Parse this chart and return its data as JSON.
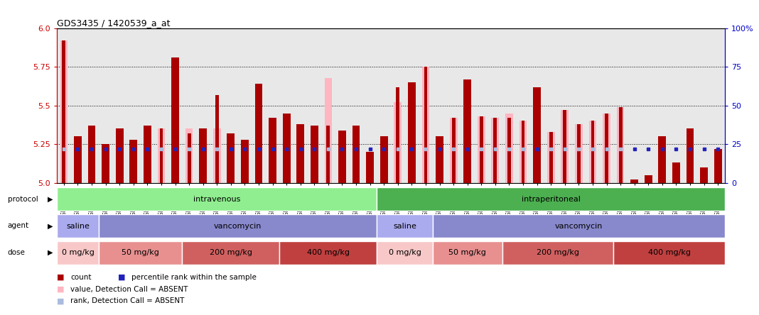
{
  "title": "GDS3435 / 1420539_a_at",
  "samples": [
    "GSM189045",
    "GSM189047",
    "GSM189048",
    "GSM189049",
    "GSM189050",
    "GSM189051",
    "GSM189052",
    "GSM189053",
    "GSM189054",
    "GSM189055",
    "GSM189056",
    "GSM189057",
    "GSM189058",
    "GSM189059",
    "GSM189060",
    "GSM189062",
    "GSM189063",
    "GSM189064",
    "GSM189065",
    "GSM189066",
    "GSM189068",
    "GSM189069",
    "GSM189070",
    "GSM189071",
    "GSM189072",
    "GSM189073",
    "GSM189074",
    "GSM189075",
    "GSM189076",
    "GSM189077",
    "GSM189078",
    "GSM189079",
    "GSM189080",
    "GSM189081",
    "GSM189082",
    "GSM189083",
    "GSM189084",
    "GSM189085",
    "GSM189086",
    "GSM189087",
    "GSM189088",
    "GSM189089",
    "GSM189090",
    "GSM189091",
    "GSM189092",
    "GSM189093",
    "GSM189094",
    "GSM189095"
  ],
  "red_values": [
    5.92,
    5.3,
    5.37,
    5.25,
    5.35,
    5.28,
    5.37,
    5.35,
    5.81,
    5.32,
    5.35,
    5.57,
    5.32,
    5.28,
    5.64,
    5.42,
    5.45,
    5.38,
    5.37,
    5.37,
    5.34,
    5.37,
    5.2,
    5.3,
    5.62,
    5.65,
    5.75,
    5.3,
    5.42,
    5.67,
    5.43,
    5.42,
    5.42,
    5.4,
    5.62,
    5.33,
    5.47,
    5.38,
    5.4,
    5.45,
    5.49,
    5.02,
    5.05,
    5.3,
    5.13,
    5.35,
    5.1,
    5.22
  ],
  "pink_values": [
    5.92,
    5.22,
    5.22,
    5.22,
    5.22,
    5.22,
    5.22,
    5.35,
    5.22,
    5.35,
    5.22,
    5.35,
    5.35,
    5.22,
    5.22,
    5.22,
    5.22,
    5.22,
    5.22,
    5.68,
    5.22,
    5.22,
    5.22,
    5.22,
    5.52,
    5.22,
    5.75,
    5.22,
    5.42,
    5.22,
    5.43,
    5.42,
    5.45,
    5.4,
    5.22,
    5.33,
    5.47,
    5.38,
    5.4,
    5.45,
    5.49,
    5.22,
    5.02,
    5.22,
    5.13,
    5.22,
    5.1,
    5.22
  ],
  "blue_percentiles": [
    22,
    22,
    22,
    22,
    22,
    22,
    22,
    22,
    22,
    22,
    22,
    22,
    22,
    22,
    22,
    22,
    22,
    22,
    22,
    22,
    22,
    22,
    22,
    22,
    22,
    22,
    22,
    22,
    22,
    22,
    22,
    22,
    22,
    22,
    22,
    22,
    22,
    22,
    22,
    22,
    22,
    22,
    22,
    22,
    22,
    22,
    22,
    22
  ],
  "absent_mask": [
    true,
    false,
    false,
    false,
    false,
    false,
    false,
    true,
    false,
    true,
    false,
    true,
    false,
    false,
    false,
    false,
    false,
    false,
    false,
    true,
    false,
    false,
    false,
    false,
    true,
    false,
    true,
    false,
    true,
    false,
    true,
    true,
    true,
    true,
    false,
    true,
    true,
    true,
    true,
    true,
    true,
    false,
    false,
    false,
    false,
    false,
    false,
    false
  ],
  "ylim": [
    5.0,
    6.0
  ],
  "y2lim": [
    0,
    100
  ],
  "yticks": [
    5.0,
    5.25,
    5.5,
    5.75,
    6.0
  ],
  "y2ticks": [
    0,
    25,
    50,
    75,
    100
  ],
  "dotted_lines": [
    5.25,
    5.5,
    5.75
  ],
  "protocol_groups": [
    {
      "label": "intravenous",
      "start": 0,
      "end": 23,
      "color": "#90ee90"
    },
    {
      "label": "intraperitoneal",
      "start": 23,
      "end": 48,
      "color": "#4caf50"
    }
  ],
  "agent_groups": [
    {
      "label": "saline",
      "start": 0,
      "end": 3,
      "color": "#aaaaee"
    },
    {
      "label": "vancomycin",
      "start": 3,
      "end": 23,
      "color": "#8888cc"
    },
    {
      "label": "saline",
      "start": 23,
      "end": 27,
      "color": "#aaaaee"
    },
    {
      "label": "vancomycin",
      "start": 27,
      "end": 48,
      "color": "#8888cc"
    }
  ],
  "dose_groups": [
    {
      "label": "0 mg/kg",
      "start": 0,
      "end": 3,
      "color": "#f8c8c8"
    },
    {
      "label": "50 mg/kg",
      "start": 3,
      "end": 9,
      "color": "#e89090"
    },
    {
      "label": "200 mg/kg",
      "start": 9,
      "end": 16,
      "color": "#d06060"
    },
    {
      "label": "400 mg/kg",
      "start": 16,
      "end": 23,
      "color": "#c04040"
    },
    {
      "label": "0 mg/kg",
      "start": 23,
      "end": 27,
      "color": "#f8c8c8"
    },
    {
      "label": "50 mg/kg",
      "start": 27,
      "end": 32,
      "color": "#e89090"
    },
    {
      "label": "200 mg/kg",
      "start": 32,
      "end": 40,
      "color": "#d06060"
    },
    {
      "label": "400 mg/kg",
      "start": 40,
      "end": 48,
      "color": "#c04040"
    }
  ],
  "bar_color": "#aa0000",
  "pink_color": "#ffb6c1",
  "blue_color": "#2222bb",
  "light_blue_color": "#aabbdd",
  "bg_color": "#e8e8e8",
  "left_axis_color": "#cc0000",
  "right_axis_color": "#0000cc"
}
